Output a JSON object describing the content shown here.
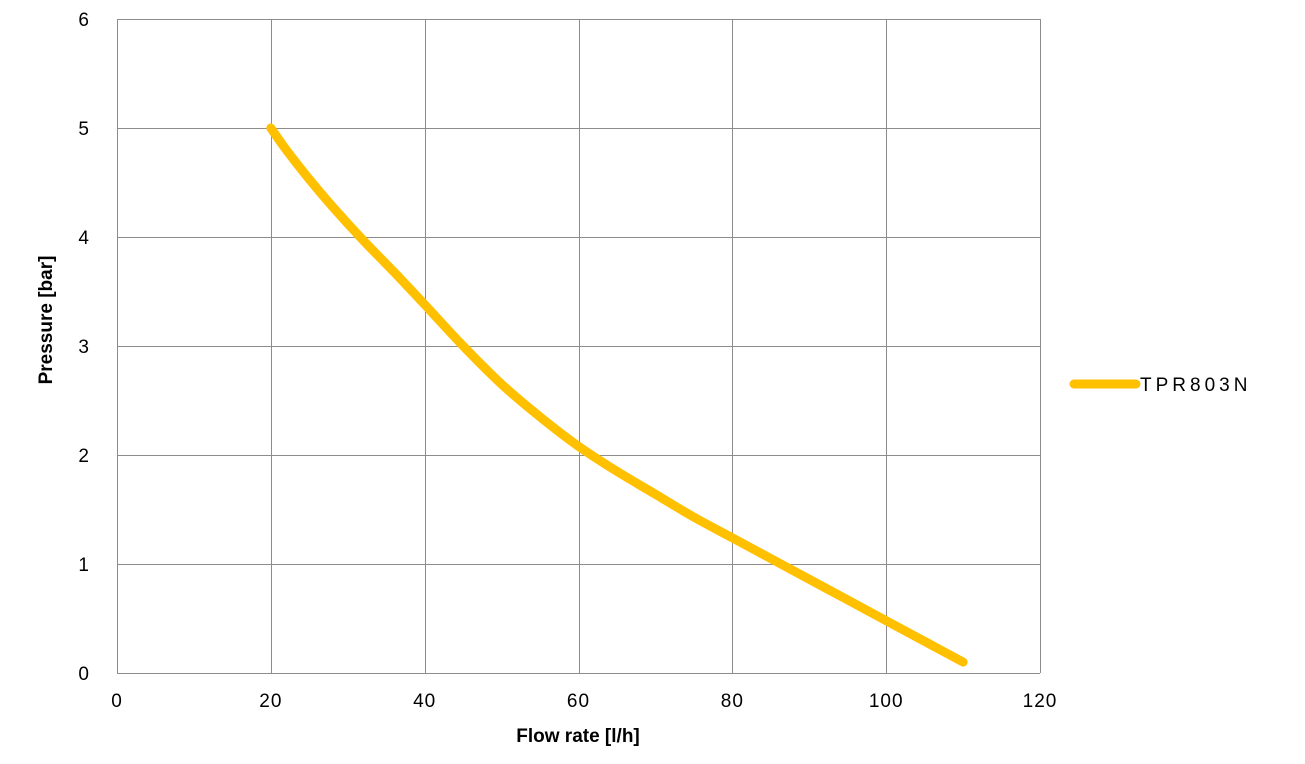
{
  "chart_data": {
    "type": "line",
    "title": "",
    "xlabel": "Flow rate [l/h]",
    "ylabel": "Pressure [bar]",
    "xlim": [
      0,
      120
    ],
    "ylim": [
      0,
      6
    ],
    "xticks": [
      0,
      20,
      40,
      60,
      80,
      100,
      120
    ],
    "yticks": [
      0,
      1,
      2,
      3,
      4,
      5,
      6
    ],
    "x_tick_labels": [
      "0",
      "20",
      "40",
      "60",
      "80",
      "100",
      "120"
    ],
    "y_tick_labels": [
      "0",
      "1",
      "2",
      "3",
      "4",
      "5",
      "6"
    ],
    "grid": true,
    "legend_position": "right",
    "series": [
      {
        "name": "TPR803N",
        "color": "#FFC000",
        "x": [
          20,
          22,
          25,
          28,
          32,
          36,
          40,
          45,
          50,
          55,
          60,
          65,
          70,
          75,
          80,
          85,
          90,
          95,
          100,
          105,
          110
        ],
        "y": [
          5.0,
          4.8,
          4.53,
          4.28,
          3.97,
          3.68,
          3.38,
          3.0,
          2.65,
          2.35,
          2.08,
          1.85,
          1.64,
          1.43,
          1.24,
          1.05,
          0.86,
          0.67,
          0.48,
          0.29,
          0.1
        ]
      }
    ]
  }
}
